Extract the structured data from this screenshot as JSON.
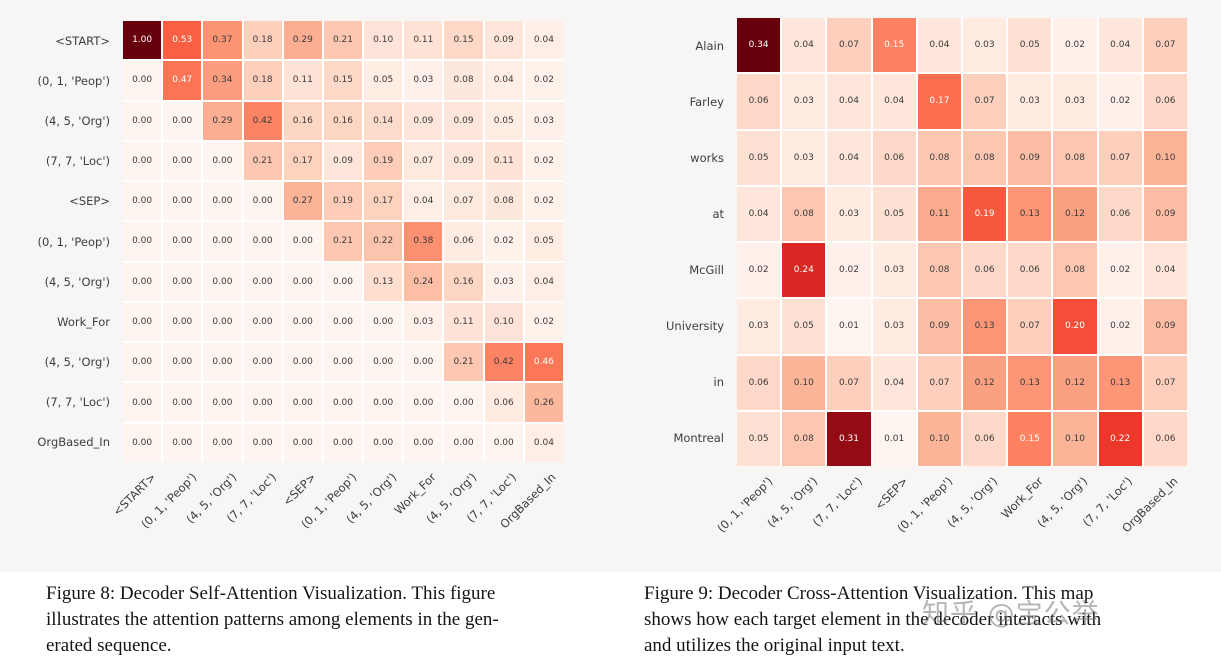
{
  "page": {
    "plot_background": "#f7f6f4",
    "caption_background": "#ffffff",
    "colormap_low": "#fff5f0",
    "colormap_high": "#67000d"
  },
  "watermark": {
    "text": "知乎 @宝公举"
  },
  "captions": {
    "fig8": {
      "lines": [
        "Figure 8: Decoder Self-Attention Visualization. This figure",
        "illustrates the attention patterns among elements in the gen-",
        "erated sequence."
      ]
    },
    "fig9": {
      "lines": [
        "Figure 9: Decoder Cross-Attention Visualization. This map",
        "shows how each target element in the decoder interacts with",
        "and utilizes the original input text."
      ]
    }
  },
  "chart_data": [
    {
      "type": "heatmap",
      "colormap": "Reds",
      "annotated": true,
      "cell_format": ".2f",
      "colorbar": false,
      "rows": [
        "<START>",
        "(0, 1, 'Peop')",
        "(4, 5, 'Org')",
        "(7, 7, 'Loc')",
        "<SEP>",
        "(0, 1, 'Peop')",
        "(4, 5, 'Org')",
        "Work_For",
        "(4, 5, 'Org')",
        "(7, 7, 'Loc')",
        "OrgBased_In"
      ],
      "columns": [
        "<START>",
        "(0, 1, 'Peop')",
        "(4, 5, 'Org')",
        "(7, 7, 'Loc')",
        "<SEP>",
        "(0, 1, 'Peop')",
        "(4, 5, 'Org')",
        "Work_For",
        "(4, 5, 'Org')",
        "(7, 7, 'Loc')",
        "OrgBased_In"
      ],
      "values": [
        [
          1.0,
          0.53,
          0.37,
          0.18,
          0.29,
          0.21,
          0.1,
          0.11,
          0.15,
          0.09,
          0.04
        ],
        [
          0.0,
          0.47,
          0.34,
          0.18,
          0.11,
          0.15,
          0.05,
          0.03,
          0.08,
          0.04,
          0.02
        ],
        [
          0.0,
          0.0,
          0.29,
          0.42,
          0.16,
          0.16,
          0.14,
          0.09,
          0.09,
          0.05,
          0.03
        ],
        [
          0.0,
          0.0,
          0.0,
          0.21,
          0.17,
          0.09,
          0.19,
          0.07,
          0.09,
          0.11,
          0.02
        ],
        [
          0.0,
          0.0,
          0.0,
          0.0,
          0.27,
          0.19,
          0.17,
          0.04,
          0.07,
          0.08,
          0.02
        ],
        [
          0.0,
          0.0,
          0.0,
          0.0,
          0.0,
          0.21,
          0.22,
          0.38,
          0.06,
          0.02,
          0.05
        ],
        [
          0.0,
          0.0,
          0.0,
          0.0,
          0.0,
          0.0,
          0.13,
          0.24,
          0.16,
          0.03,
          0.04
        ],
        [
          0.0,
          0.0,
          0.0,
          0.0,
          0.0,
          0.0,
          0.0,
          0.03,
          0.11,
          0.1,
          0.02
        ],
        [
          0.0,
          0.0,
          0.0,
          0.0,
          0.0,
          0.0,
          0.0,
          0.0,
          0.21,
          0.42,
          0.46
        ],
        [
          0.0,
          0.0,
          0.0,
          0.0,
          0.0,
          0.0,
          0.0,
          0.0,
          0.0,
          0.06,
          0.26
        ],
        [
          0.0,
          0.0,
          0.0,
          0.0,
          0.0,
          0.0,
          0.0,
          0.0,
          0.0,
          0.0,
          0.04
        ]
      ]
    },
    {
      "type": "heatmap",
      "colormap": "Reds",
      "annotated": true,
      "cell_format": ".2f",
      "colorbar": false,
      "rows": [
        "Alain",
        "Farley",
        "works",
        "at",
        "McGill",
        "University",
        "in",
        "Montreal"
      ],
      "columns": [
        "(0, 1, 'Peop')",
        "(4, 5, 'Org')",
        "(7, 7, 'Loc')",
        "<SEP>",
        "(0, 1, 'Peop')",
        "(4, 5, 'Org')",
        "Work_For",
        "(4, 5, 'Org')",
        "(7, 7, 'Loc')",
        "OrgBased_In"
      ],
      "values": [
        [
          0.34,
          0.04,
          0.07,
          0.15,
          0.04,
          0.03,
          0.05,
          0.02,
          0.04,
          0.07
        ],
        [
          0.06,
          0.03,
          0.04,
          0.04,
          0.17,
          0.07,
          0.03,
          0.03,
          0.02,
          0.06
        ],
        [
          0.05,
          0.03,
          0.04,
          0.06,
          0.08,
          0.08,
          0.09,
          0.08,
          0.07,
          0.1
        ],
        [
          0.04,
          0.08,
          0.03,
          0.05,
          0.11,
          0.19,
          0.13,
          0.12,
          0.06,
          0.09
        ],
        [
          0.02,
          0.24,
          0.02,
          0.03,
          0.08,
          0.06,
          0.06,
          0.08,
          0.02,
          0.04
        ],
        [
          0.03,
          0.05,
          0.01,
          0.03,
          0.09,
          0.13,
          0.07,
          0.2,
          0.02,
          0.09
        ],
        [
          0.06,
          0.1,
          0.07,
          0.04,
          0.07,
          0.12,
          0.13,
          0.12,
          0.13,
          0.07
        ],
        [
          0.05,
          0.08,
          0.31,
          0.01,
          0.1,
          0.06,
          0.15,
          0.1,
          0.22,
          0.06
        ]
      ]
    }
  ]
}
